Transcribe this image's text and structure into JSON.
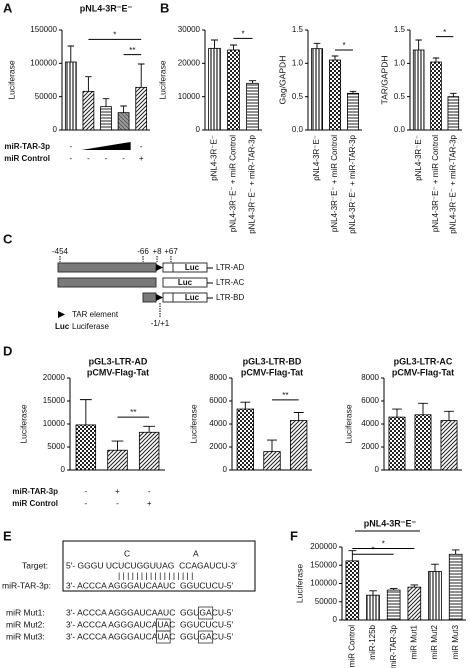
{
  "panel_labels": [
    "A",
    "B",
    "C",
    "D",
    "E",
    "F"
  ],
  "chart_data": [
    {
      "type": "bar",
      "title": "pNL4-3R⁻E⁻",
      "ylabel": "Luciferase",
      "values": [
        102000,
        58000,
        35000,
        26000,
        64000
      ],
      "errors": [
        24000,
        22000,
        12000,
        10000,
        35000
      ],
      "ylim": [
        0,
        150000
      ],
      "yticks": [
        0,
        50000,
        100000,
        150000
      ],
      "annotations": [
        "*",
        "**"
      ],
      "conditions": [
        {
          "label": "miR-TAR-3p",
          "marks": [
            "-",
            null,
            null,
            null,
            "-"
          ]
        },
        {
          "label": "miR Control",
          "marks": [
            "-",
            "-",
            "-",
            "-",
            "+"
          ]
        }
      ]
    },
    {
      "type": "bar",
      "ylabel": "Luciferase",
      "categories": [
        "pNL4-3R⁻E⁻",
        "pNL4-3R⁻E⁻ + miR Control",
        "pNL4-3R⁻E⁻ + miR-TAR-3p"
      ],
      "values": [
        24500,
        24000,
        14000
      ],
      "errors": [
        2500,
        1500,
        800
      ],
      "ylim": [
        0,
        30000
      ],
      "yticks": [
        0,
        10000,
        20000,
        30000
      ],
      "annotations": [
        "*"
      ]
    },
    {
      "type": "bar",
      "ylabel": "Gag/GAPDH",
      "categories": [
        "pNL4-3R⁻E⁻",
        "pNL4-3R⁻E⁻ + miR Control",
        "pNL4-3R⁻E⁻ + miR-TAR-3p"
      ],
      "values": [
        1.22,
        1.05,
        0.55
      ],
      "errors": [
        0.08,
        0.06,
        0.03
      ],
      "ylim": [
        0,
        1.5
      ],
      "yticks": [
        {
          "value": 0,
          "label": "0.0"
        },
        0.5,
        {
          "value": 1,
          "label": "1.0"
        },
        1.5
      ],
      "annotations": [
        "*"
      ]
    },
    {
      "type": "bar",
      "ylabel": "TAR/GAPDH",
      "categories": [
        "pNL4-3R⁻E⁻",
        "pNL4-3R⁻E⁻ + miR Control",
        "pNL4-3R⁻E⁻ + miR-TAR-3p"
      ],
      "values": [
        1.2,
        1.02,
        0.5
      ],
      "errors": [
        0.15,
        0.06,
        0.05
      ],
      "ylim": [
        0,
        1.5
      ],
      "yticks": [
        {
          "value": 0,
          "label": "0.0"
        },
        0.5,
        {
          "value": 1,
          "label": "1.0"
        },
        1.5
      ],
      "annotations": [
        "*"
      ]
    },
    {
      "type": "bar",
      "title": [
        "pGL3-LTR-AD",
        "pCMV-Flag-Tat"
      ],
      "ylabel": "Luciferase",
      "values": [
        9800,
        4300,
        8200
      ],
      "errors": [
        5500,
        2000,
        1300
      ],
      "ylim": [
        0,
        20000
      ],
      "yticks": [
        0,
        5000,
        10000,
        15000,
        20000
      ],
      "annotations": [
        "**"
      ],
      "conditions": [
        {
          "label": "miR-TAR-3p",
          "marks": [
            "-",
            "+",
            "-"
          ]
        },
        {
          "label": "miR Control",
          "marks": [
            "-",
            "-",
            "+"
          ]
        }
      ]
    },
    {
      "type": "bar",
      "title": [
        "pGL3-LTR-BD",
        "pCMV-Flag-Tat"
      ],
      "ylabel": "Luciferase",
      "values": [
        5300,
        1600,
        4300
      ],
      "errors": [
        600,
        1000,
        700
      ],
      "ylim": [
        0,
        8000
      ],
      "yticks": [
        0,
        2000,
        4000,
        6000,
        8000
      ],
      "annotations": [
        "**"
      ]
    },
    {
      "type": "bar",
      "title": [
        "pGL3-LTR-AC",
        "pCMV-Flag-Tat"
      ],
      "ylabel": "Luciferase",
      "values": [
        4600,
        4800,
        4300
      ],
      "errors": [
        700,
        1000,
        800
      ],
      "ylim": [
        0,
        8000
      ],
      "yticks": [
        0,
        2000,
        4000,
        6000,
        8000
      ]
    },
    {
      "type": "bar",
      "title": "pNL4-3R⁻E⁻",
      "ylabel": "Luciferase",
      "categories": [
        "miR Control",
        "miR-125b",
        "miR-TAR-3p",
        "miR Mut1",
        "miR Mut2",
        "miR Mut3"
      ],
      "values": [
        162000,
        68000,
        82000,
        90000,
        133000,
        180000
      ],
      "errors": [
        28000,
        12000,
        4000,
        6000,
        20000,
        12000
      ],
      "ylim": [
        0,
        200000
      ],
      "yticks": [
        0,
        50000,
        100000,
        150000,
        200000
      ],
      "annotations": [
        "*",
        "*"
      ]
    }
  ],
  "diagram_c": {
    "positions": [
      "-454",
      "-66",
      "+8",
      "+67",
      "-1/+1"
    ],
    "box": "Luc",
    "constructs": [
      "LTR-AD",
      "LTR-AC",
      "LTR-BD"
    ],
    "legend": [
      "TAR element",
      "Luc",
      "Luciferase"
    ]
  },
  "sequences_e": {
    "bulge": [
      "C",
      "A"
    ],
    "pairs": "| | | | | | | | | | |   | | | | | |",
    "rows": [
      {
        "label": "Target:",
        "segments": [
          "5'- GGGU UCUCUGGUUAG  CCAGAUCU-3'"
        ],
        "highlight": [],
        "boxed": []
      },
      {
        "label": "miR-TAR-3p:",
        "segments": [
          "3'- ACCCA AGGGAUCA",
          "AU",
          "C  GGU",
          "CU",
          "CU-5'"
        ],
        "highlight": [
          1,
          3
        ],
        "boxed": []
      },
      {
        "label": "miR Mut1:",
        "segments": [
          "3'- ACCCA AGGGAUCA",
          "AU",
          "C  GGU",
          "GA",
          "CU-5'"
        ],
        "highlight": [
          1,
          3
        ],
        "boxed": [
          3
        ]
      },
      {
        "label": "miR Mut2:",
        "segments": [
          "3'- ACCCA AGGGAUCA",
          "UA",
          "C  GGUCUCU-5'"
        ],
        "highlight": [
          1
        ],
        "boxed": [
          1
        ]
      },
      {
        "label": "miR Mut3:",
        "segments": [
          "3'- ACCCA AGGGAUCA",
          "UA",
          "C  GGU",
          "GA",
          "CU-5'"
        ],
        "highlight": [
          1,
          3
        ],
        "boxed": [
          1,
          3
        ]
      }
    ],
    "highlight_color": "#e0201b"
  }
}
